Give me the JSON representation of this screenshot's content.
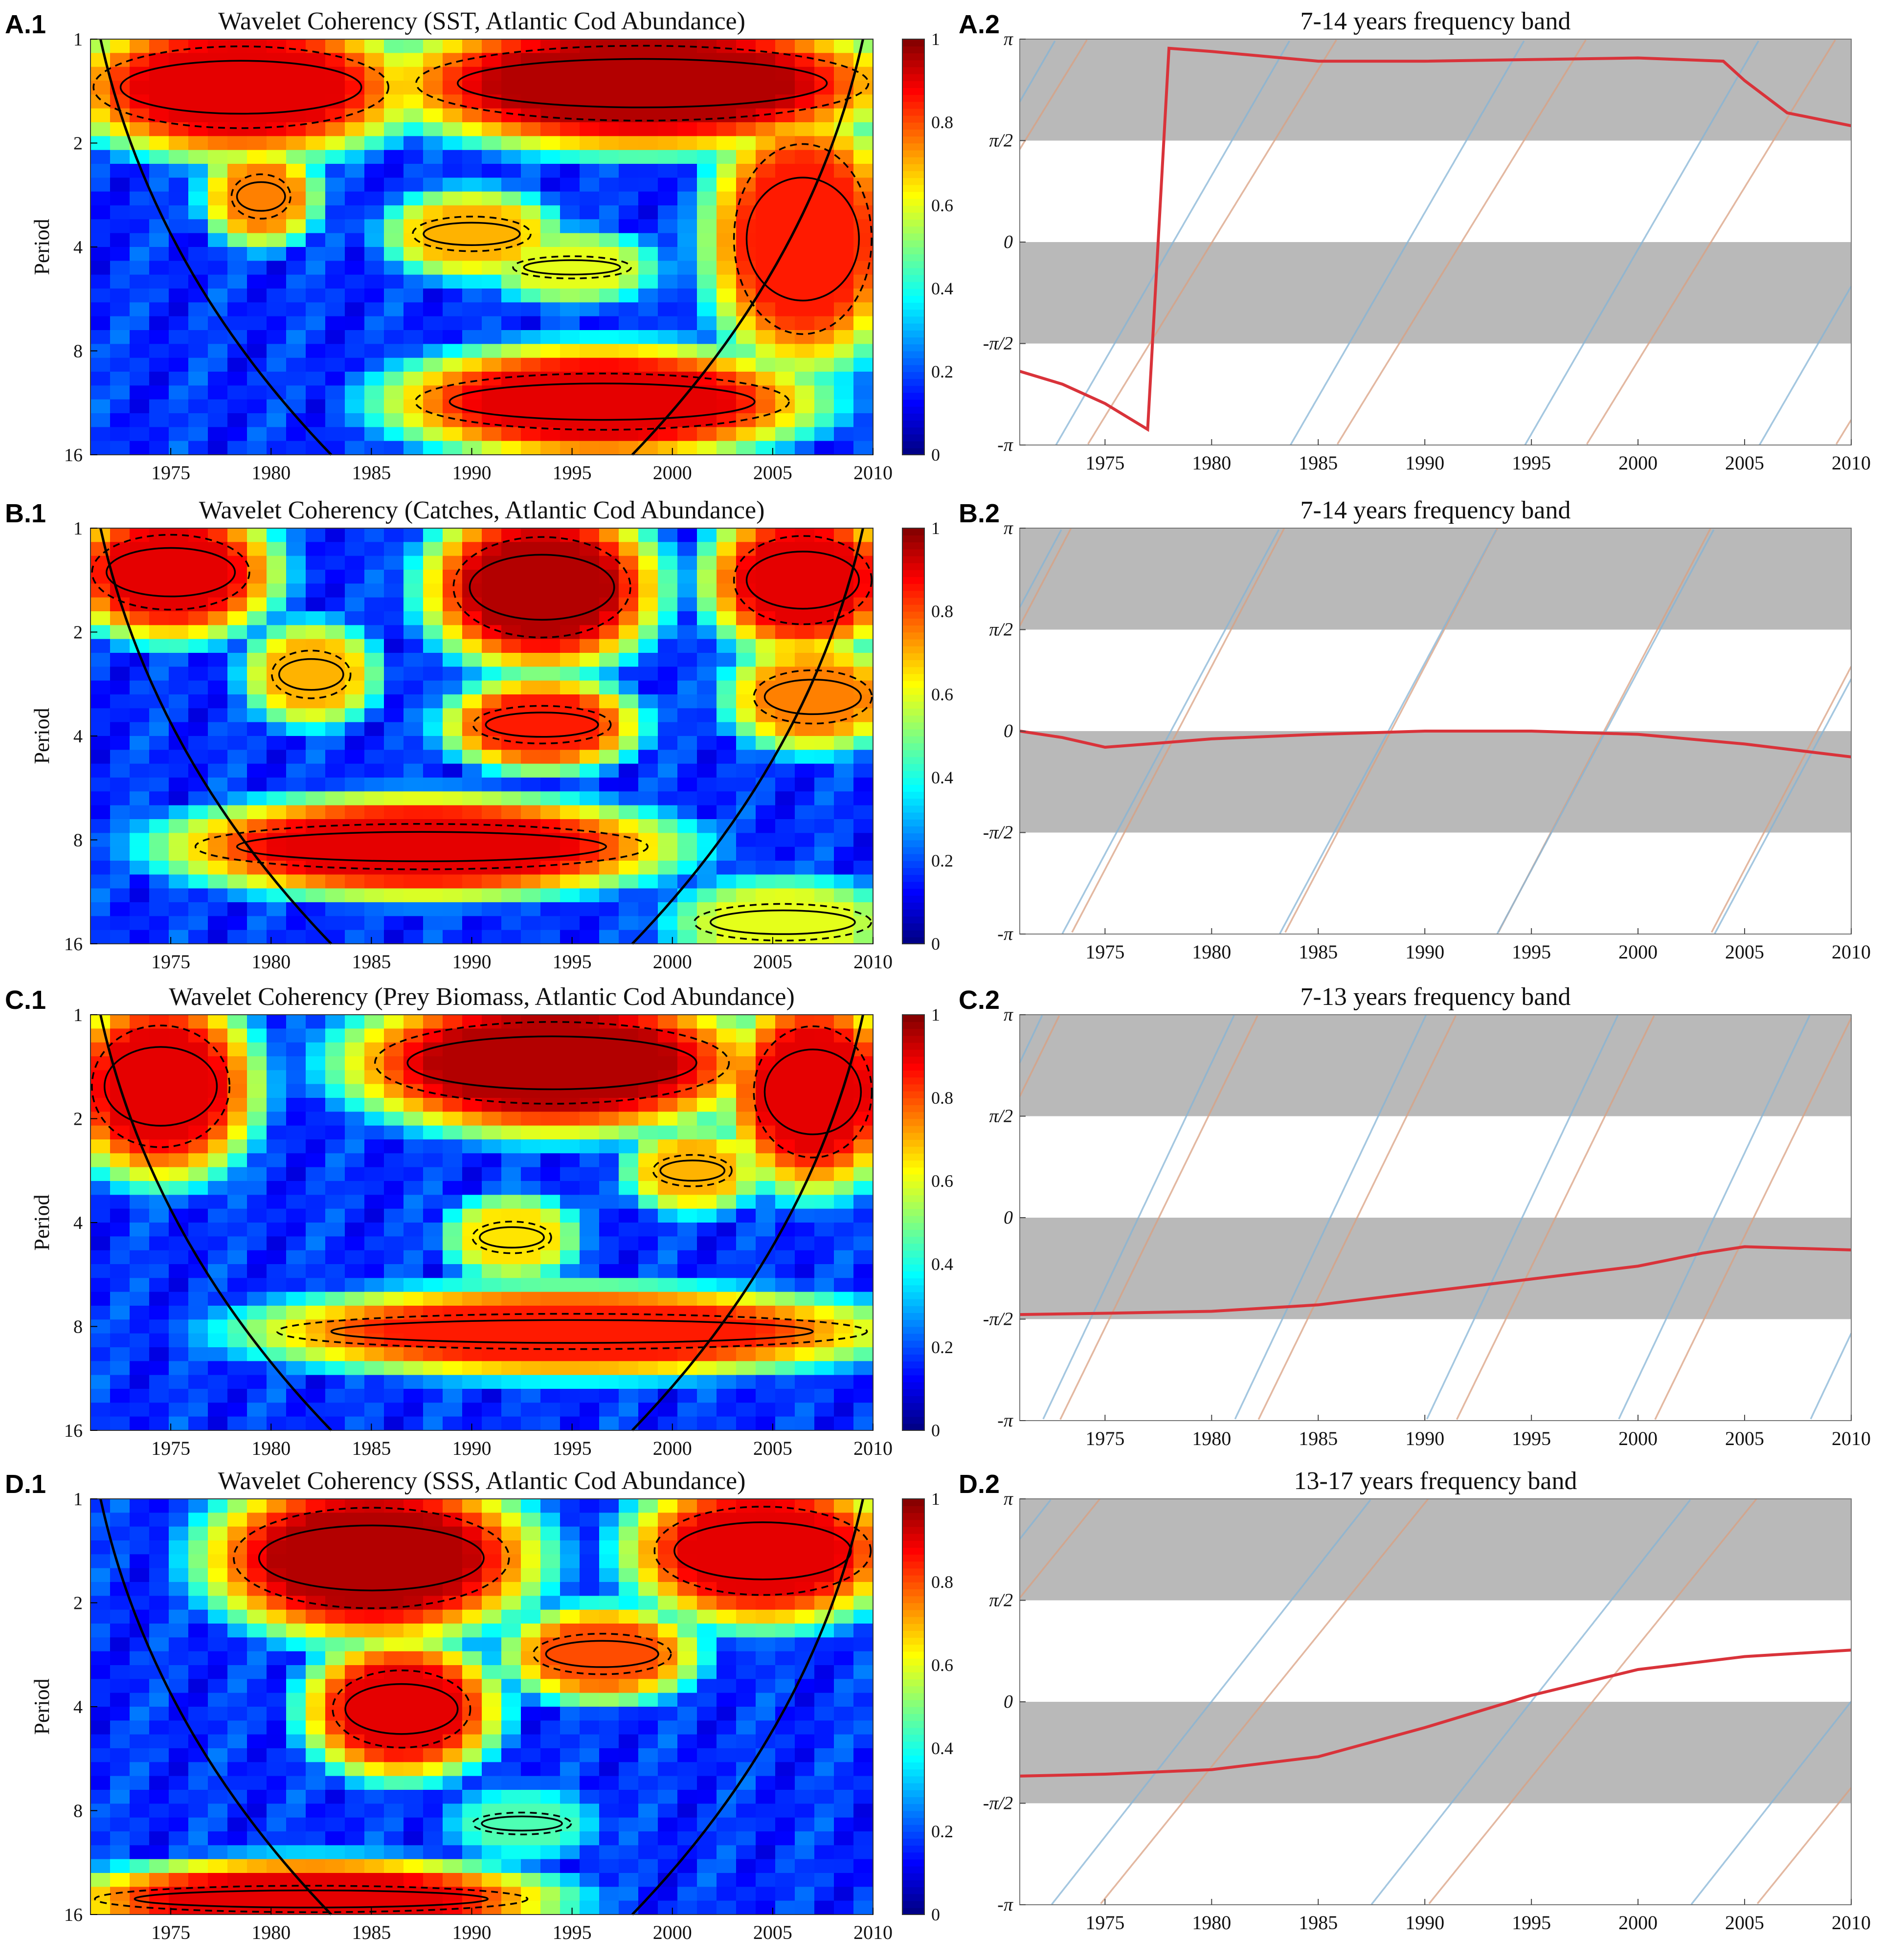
{
  "figure": {
    "panels": [
      "A.1",
      "A.2",
      "B.1",
      "B.2",
      "C.1",
      "C.2",
      "D.1",
      "D.2"
    ]
  },
  "chart_data": [
    {
      "id": "A.1",
      "type": "heatmap",
      "title": "Wavelet Coherency (SST, Atlantic Cod Abundance)",
      "ylabel": "Period",
      "xlabel": "",
      "xlim": [
        1971,
        2010
      ],
      "x_ticks": [
        "1975",
        "1980",
        "1985",
        "1990",
        "1995",
        "2000",
        "2005",
        "2010"
      ],
      "y_ticks": [
        "1",
        "2",
        "4",
        "8",
        "16"
      ],
      "y_scale": "log2",
      "colorbar_ticks": [
        "0",
        "0.2",
        "0.4",
        "0.6",
        "0.8",
        "1"
      ],
      "colormap": "jet",
      "high_regions": [
        {
          "x": [
            1971,
            1986
          ],
          "period": [
            1,
            1.9
          ],
          "value": 0.9
        },
        {
          "x": [
            1987,
            2010
          ],
          "period": [
            1,
            1.8
          ],
          "value": 0.95
        },
        {
          "x": [
            2003,
            2010
          ],
          "period": [
            1.8,
            8
          ],
          "value": 0.85
        },
        {
          "x": [
            1987,
            2006
          ],
          "period": [
            9,
            14
          ],
          "value": 0.9
        },
        {
          "x": [
            1978,
            1981
          ],
          "period": [
            2.4,
            3.4
          ],
          "value": 0.75
        },
        {
          "x": [
            1987,
            1993
          ],
          "period": [
            3.2,
            4.2
          ],
          "value": 0.7
        },
        {
          "x": [
            1992,
            1998
          ],
          "period": [
            4.2,
            5
          ],
          "value": 0.6
        }
      ]
    },
    {
      "id": "A.2",
      "type": "line",
      "title": "7-14 years frequency band",
      "xlim": [
        1971,
        2010
      ],
      "x_ticks": [
        "1975",
        "1980",
        "1985",
        "1990",
        "1995",
        "2000",
        "2005",
        "2010"
      ],
      "y_ticks": [
        "π",
        "π/2",
        "0",
        "-π/2",
        "-π"
      ],
      "ylim": [
        -3.1416,
        3.1416
      ],
      "shaded_bands": [
        [
          1.5708,
          3.1416
        ],
        [
          -1.5708,
          0
        ]
      ],
      "phase_difference": {
        "x": [
          1971,
          1973,
          1975,
          1977,
          1978,
          1980,
          1985,
          1990,
          2000,
          2004,
          2005,
          2007,
          2010
        ],
        "y": [
          -2.0,
          -2.2,
          -2.5,
          -2.9,
          3.0,
          2.95,
          2.8,
          2.8,
          2.85,
          2.8,
          2.5,
          2.0,
          1.8
        ]
      },
      "series_1_phase": {
        "x0": 1970,
        "period": 11.7,
        "start_phase": 0.9
      },
      "series_2_phase": {
        "x0": 1970,
        "period": 11.0,
        "start_phase": 1.6
      }
    },
    {
      "id": "B.1",
      "type": "heatmap",
      "title": "Wavelet Coherency (Catches, Atlantic Cod Abundance)",
      "ylabel": "Period",
      "xlabel": "",
      "xlim": [
        1971,
        2010
      ],
      "x_ticks": [
        "1975",
        "1980",
        "1985",
        "1990",
        "1995",
        "2000",
        "2005",
        "2010"
      ],
      "y_ticks": [
        "1",
        "2",
        "4",
        "8",
        "16"
      ],
      "y_scale": "log2",
      "colorbar_ticks": [
        "0",
        "0.2",
        "0.4",
        "0.6",
        "0.8",
        "1"
      ],
      "colormap": "jet",
      "high_regions": [
        {
          "x": [
            1971,
            1979
          ],
          "period": [
            1,
            1.8
          ],
          "value": 0.9
        },
        {
          "x": [
            1989,
            1998
          ],
          "period": [
            1,
            2.2
          ],
          "value": 0.95
        },
        {
          "x": [
            2003,
            2010
          ],
          "period": [
            1,
            2.0
          ],
          "value": 0.9
        },
        {
          "x": [
            1976,
            1999
          ],
          "period": [
            7,
            10
          ],
          "value": 0.9
        },
        {
          "x": [
            1980,
            1984
          ],
          "period": [
            2.2,
            3.2
          ],
          "value": 0.7
        },
        {
          "x": [
            1990,
            1997
          ],
          "period": [
            3.2,
            4.3
          ],
          "value": 0.85
        },
        {
          "x": [
            2004,
            2010
          ],
          "period": [
            2.5,
            3.8
          ],
          "value": 0.75
        },
        {
          "x": [
            2001,
            2010
          ],
          "period": [
            12,
            16
          ],
          "value": 0.6
        }
      ]
    },
    {
      "id": "B.2",
      "type": "line",
      "title": "7-14 years frequency band",
      "xlim": [
        1971,
        2010
      ],
      "x_ticks": [
        "1975",
        "1980",
        "1985",
        "1990",
        "1995",
        "2000",
        "2005",
        "2010"
      ],
      "y_ticks": [
        "π",
        "π/2",
        "0",
        "-π/2",
        "-π"
      ],
      "ylim": [
        -3.1416,
        3.1416
      ],
      "shaded_bands": [
        [
          1.5708,
          3.1416
        ],
        [
          -1.5708,
          0
        ]
      ],
      "phase_difference": {
        "x": [
          1971,
          1973,
          1975,
          1977,
          1980,
          1985,
          1990,
          1995,
          2000,
          2005,
          2010
        ],
        "y": [
          0.0,
          -0.1,
          -0.25,
          -0.2,
          -0.12,
          -0.05,
          0.0,
          0.0,
          -0.05,
          -0.2,
          -0.4
        ]
      },
      "series_1_phase": {
        "x0": 1970,
        "period": 10.0,
        "start_phase": 1.0
      },
      "series_2_phase": {
        "x0": 1970,
        "period": 10.2,
        "start_phase": 1.3
      }
    },
    {
      "id": "C.1",
      "type": "heatmap",
      "title": "Wavelet Coherency (Prey Biomass, Atlantic Cod Abundance)",
      "ylabel": "Period",
      "xlabel": "",
      "xlim": [
        1971,
        2010
      ],
      "x_ticks": [
        "1975",
        "1980",
        "1985",
        "1990",
        "1995",
        "2000",
        "2005",
        "2010"
      ],
      "y_ticks": [
        "1",
        "2",
        "4",
        "8",
        "16"
      ],
      "y_scale": "log2",
      "colorbar_ticks": [
        "0",
        "0.2",
        "0.4",
        "0.6",
        "0.8",
        "1"
      ],
      "colormap": "jet",
      "high_regions": [
        {
          "x": [
            1971,
            1978
          ],
          "period": [
            1,
            2.6
          ],
          "value": 0.9
        },
        {
          "x": [
            1985,
            2003
          ],
          "period": [
            1,
            1.9
          ],
          "value": 0.95
        },
        {
          "x": [
            2004,
            2010
          ],
          "period": [
            1,
            2.8
          ],
          "value": 0.9
        },
        {
          "x": [
            1980,
            2010
          ],
          "period": [
            7.2,
            9.5
          ],
          "value": 0.85
        },
        {
          "x": [
            1999,
            2003
          ],
          "period": [
            2.5,
            3.2
          ],
          "value": 0.7
        },
        {
          "x": [
            1990,
            1994
          ],
          "period": [
            3.9,
            5.0
          ],
          "value": 0.65
        }
      ]
    },
    {
      "id": "C.2",
      "type": "line",
      "title": "7-13 years frequency band",
      "xlim": [
        1971,
        2010
      ],
      "x_ticks": [
        "1975",
        "1980",
        "1985",
        "1990",
        "1995",
        "2000",
        "2005",
        "2010"
      ],
      "y_ticks": [
        "π",
        "π/2",
        "0",
        "-π/2",
        "-π"
      ],
      "ylim": [
        -3.1416,
        3.1416
      ],
      "shaded_bands": [
        [
          1.5708,
          3.1416
        ],
        [
          -1.5708,
          0
        ]
      ],
      "phase_difference": {
        "x": [
          1971,
          1975,
          1980,
          1985,
          1990,
          1995,
          2000,
          2003,
          2005,
          2010
        ],
        "y": [
          -1.5,
          -1.48,
          -1.45,
          -1.35,
          -1.15,
          -0.95,
          -0.75,
          -0.55,
          -0.45,
          -0.5
        ]
      },
      "series_1_phase": {
        "x0": 1970,
        "period": 9.3,
        "start_phase": 1.2
      },
      "series_2_phase": {
        "x0": 1970,
        "period": 9.0,
        "start_phase": 1.7
      }
    },
    {
      "id": "D.1",
      "type": "heatmap",
      "title": "Wavelet Coherency (SSS, Atlantic Cod Abundance)",
      "ylabel": "Period",
      "xlabel": "",
      "xlim": [
        1971,
        2010
      ],
      "x_ticks": [
        "1975",
        "1980",
        "1985",
        "1990",
        "1995",
        "2000",
        "2005",
        "2010"
      ],
      "y_ticks": [
        "1",
        "2",
        "4",
        "8",
        "16"
      ],
      "y_scale": "log2",
      "colorbar_ticks": [
        "0",
        "0.2",
        "0.4",
        "0.6",
        "0.8",
        "1"
      ],
      "colormap": "jet",
      "high_regions": [
        {
          "x": [
            1978,
            1992
          ],
          "period": [
            1,
            2.2
          ],
          "value": 0.95
        },
        {
          "x": [
            1999,
            2010
          ],
          "period": [
            1,
            2.0
          ],
          "value": 0.9
        },
        {
          "x": [
            1983,
            1990
          ],
          "period": [
            3.0,
            5.5
          ],
          "value": 0.9
        },
        {
          "x": [
            1993,
            2000
          ],
          "period": [
            2.4,
            3.3
          ],
          "value": 0.8
        },
        {
          "x": [
            1971,
            1993
          ],
          "period": [
            13,
            16
          ],
          "value": 0.9
        },
        {
          "x": [
            1990,
            1995
          ],
          "period": [
            8,
            9.5
          ],
          "value": 0.45
        }
      ]
    },
    {
      "id": "D.2",
      "type": "line",
      "title": "13-17 years frequency band",
      "xlim": [
        1971,
        2010
      ],
      "x_ticks": [
        "1975",
        "1980",
        "1985",
        "1990",
        "1995",
        "2000",
        "2005",
        "2010"
      ],
      "y_ticks": [
        "π",
        "π/2",
        "0",
        "-π/2",
        "-π"
      ],
      "ylim": [
        -3.1416,
        3.1416
      ],
      "shaded_bands": [
        [
          1.5708,
          3.1416
        ],
        [
          -1.5708,
          0
        ]
      ],
      "phase_difference": {
        "x": [
          1971,
          1975,
          1980,
          1985,
          1990,
          1995,
          2000,
          2005,
          2010
        ],
        "y": [
          -1.15,
          -1.12,
          -1.05,
          -0.85,
          -0.4,
          0.1,
          0.5,
          0.7,
          0.8
        ]
      },
      "series_1_phase": {
        "x0": 1970,
        "period": 15.4,
        "start_phase": 1.2
      },
      "series_2_phase": {
        "x0": 1970,
        "period": 15.0,
        "start_phase": 2.1
      }
    }
  ]
}
